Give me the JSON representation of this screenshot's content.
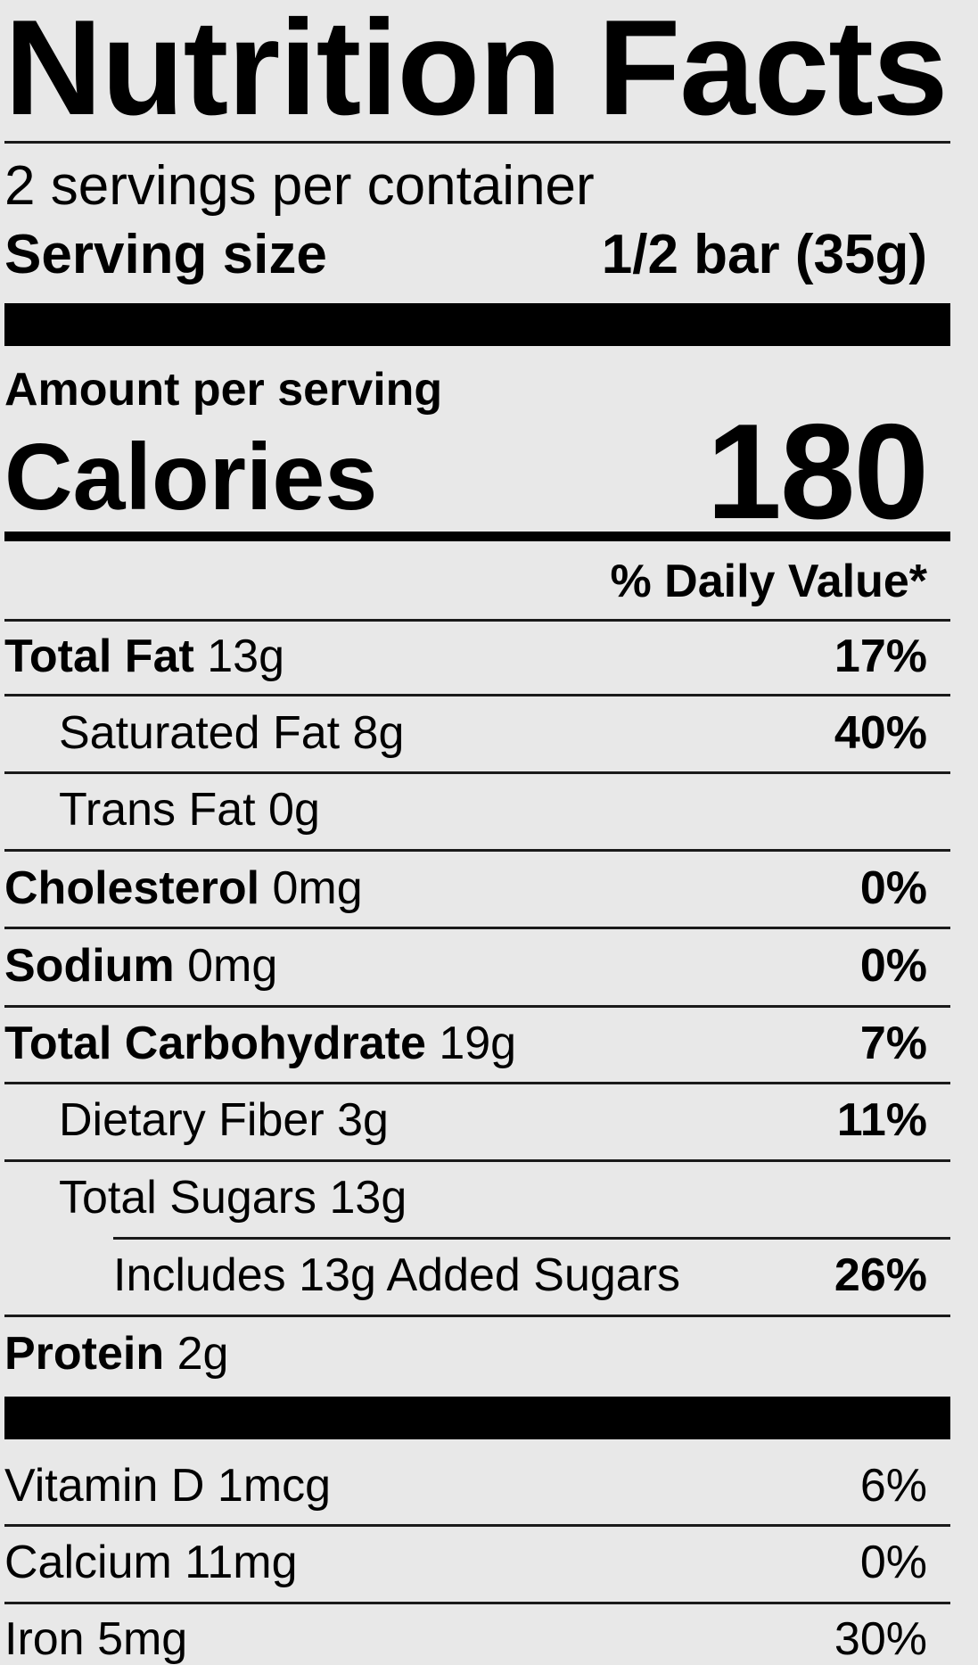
{
  "label": {
    "title": "Nutrition Facts",
    "servings_per_container": "2 servings per container",
    "serving_size_label": "Serving size",
    "serving_size_value": "1/2 bar (35g)",
    "amount_per_serving": "Amount per serving",
    "calories_label": "Calories",
    "calories_value": "180",
    "daily_value_header": "% Daily Value*"
  },
  "nutrients": [
    {
      "name": "Total Fat",
      "amount": "13g",
      "dv": "17%"
    },
    {
      "name": "Saturated Fat",
      "amount": "8g",
      "dv": "40%"
    },
    {
      "name": "Trans Fat",
      "amount": "0g",
      "dv": ""
    },
    {
      "name": "Cholesterol",
      "amount": "0mg",
      "dv": "0%"
    },
    {
      "name": "Sodium",
      "amount": "0mg",
      "dv": "0%"
    },
    {
      "name": "Total Carbohydrate",
      "amount": "19g",
      "dv": "7%"
    },
    {
      "name": "Dietary Fiber",
      "amount": "3g",
      "dv": "11%"
    },
    {
      "name": "Total Sugars",
      "amount": "13g",
      "dv": ""
    },
    {
      "name": "Includes 13g Added Sugars",
      "amount": "",
      "dv": "26%"
    },
    {
      "name": "Protein",
      "amount": "2g",
      "dv": ""
    }
  ],
  "vitamins": [
    {
      "name": "Vitamin D",
      "amount": "1mcg",
      "dv": "6%"
    },
    {
      "name": "Calcium",
      "amount": "11mg",
      "dv": "0%"
    },
    {
      "name": "Iron",
      "amount": "5mg",
      "dv": "30%"
    }
  ]
}
